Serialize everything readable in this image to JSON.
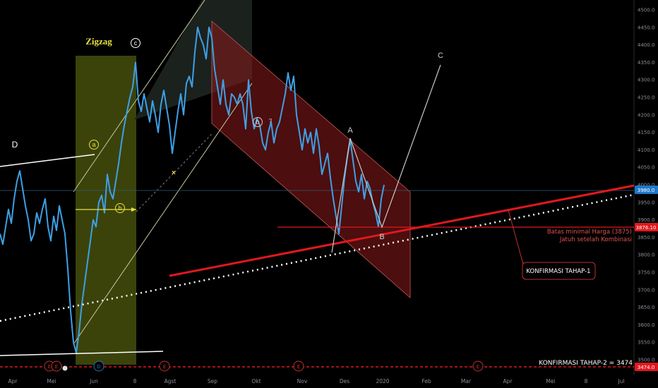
{
  "chart_data": {
    "type": "line",
    "y_axis": {
      "ticks": [
        4500,
        4450,
        4400,
        4350,
        4300,
        4250,
        4200,
        4150,
        4100,
        4050,
        4000,
        3950,
        3900,
        3850,
        3800,
        3750,
        3700,
        3650,
        3600,
        3550,
        3500
      ],
      "tick_labels": [
        "4500.0",
        "4450.0",
        "4400.0",
        "4350.0",
        "4300.0",
        "4250.0",
        "4200.0",
        "4150.0",
        "4100.0",
        "4050.0",
        "4000.0",
        "3950.0",
        "3900.0",
        "3850.0",
        "3800.0",
        "3750.0",
        "3700.0",
        "3650.0",
        "3600.0",
        "3550.0",
        "3500.0"
      ],
      "range": [
        3470,
        4520
      ],
      "side": "right"
    },
    "x_axis": {
      "labels": [
        "Apr",
        "Mei",
        "Jun",
        "8",
        "Agst",
        "Sep",
        "Okt",
        "Nov",
        "Des",
        "2020",
        "Feb",
        "Mar",
        "Apr",
        "Mei",
        "8",
        "Jul"
      ]
    },
    "price_labels": {
      "current": "3980.0",
      "level_b": "3876.10",
      "level_2": "3474.0"
    },
    "colors": {
      "price_line": "#3ea0e6",
      "red_channel": "#8b1a1a",
      "zigzag_box": "#8a9a1f",
      "trend_red": "#e0181e",
      "text_red": "#e05050"
    },
    "price_series": [
      [
        0,
        3860
      ],
      [
        4,
        3830
      ],
      [
        8,
        3880
      ],
      [
        12,
        3930
      ],
      [
        16,
        3890
      ],
      [
        20,
        3960
      ],
      [
        24,
        4010
      ],
      [
        28,
        4040
      ],
      [
        32,
        3990
      ],
      [
        36,
        3940
      ],
      [
        40,
        3900
      ],
      [
        44,
        3840
      ],
      [
        48,
        3860
      ],
      [
        52,
        3920
      ],
      [
        56,
        3890
      ],
      [
        60,
        3930
      ],
      [
        64,
        3960
      ],
      [
        68,
        3880
      ],
      [
        72,
        3840
      ],
      [
        76,
        3910
      ],
      [
        80,
        3870
      ],
      [
        84,
        3940
      ],
      [
        88,
        3900
      ],
      [
        92,
        3860
      ],
      [
        96,
        3760
      ],
      [
        100,
        3640
      ],
      [
        104,
        3550
      ],
      [
        108,
        3520
      ],
      [
        112,
        3580
      ],
      [
        116,
        3660
      ],
      [
        120,
        3720
      ],
      [
        124,
        3780
      ],
      [
        128,
        3840
      ],
      [
        132,
        3900
      ],
      [
        136,
        3880
      ],
      [
        140,
        3950
      ],
      [
        144,
        3970
      ],
      [
        148,
        3920
      ],
      [
        152,
        4030
      ],
      [
        156,
        3980
      ],
      [
        160,
        3960
      ],
      [
        164,
        4010
      ],
      [
        168,
        4060
      ],
      [
        172,
        4120
      ],
      [
        176,
        4170
      ],
      [
        180,
        4210
      ],
      [
        184,
        4250
      ],
      [
        188,
        4280
      ],
      [
        192,
        4350
      ],
      [
        196,
        4240
      ],
      [
        200,
        4210
      ],
      [
        204,
        4260
      ],
      [
        208,
        4220
      ],
      [
        212,
        4180
      ],
      [
        216,
        4240
      ],
      [
        220,
        4200
      ],
      [
        224,
        4150
      ],
      [
        228,
        4230
      ],
      [
        232,
        4270
      ],
      [
        236,
        4220
      ],
      [
        240,
        4170
      ],
      [
        244,
        4090
      ],
      [
        248,
        4150
      ],
      [
        252,
        4210
      ],
      [
        256,
        4260
      ],
      [
        260,
        4200
      ],
      [
        264,
        4290
      ],
      [
        268,
        4310
      ],
      [
        272,
        4280
      ],
      [
        276,
        4380
      ],
      [
        280,
        4450
      ],
      [
        284,
        4420
      ],
      [
        288,
        4400
      ],
      [
        292,
        4360
      ],
      [
        296,
        4450
      ],
      [
        300,
        4420
      ],
      [
        304,
        4330
      ],
      [
        308,
        4280
      ],
      [
        312,
        4230
      ],
      [
        316,
        4300
      ],
      [
        320,
        4230
      ],
      [
        324,
        4200
      ],
      [
        328,
        4260
      ],
      [
        332,
        4250
      ],
      [
        336,
        4230
      ],
      [
        340,
        4260
      ],
      [
        344,
        4230
      ],
      [
        348,
        4160
      ],
      [
        352,
        4300
      ],
      [
        356,
        4210
      ],
      [
        360,
        4160
      ],
      [
        364,
        4190
      ],
      [
        368,
        4170
      ],
      [
        372,
        4120
      ],
      [
        376,
        4100
      ],
      [
        380,
        4150
      ],
      [
        384,
        4180
      ],
      [
        388,
        4120
      ],
      [
        392,
        4160
      ],
      [
        396,
        4180
      ],
      [
        400,
        4220
      ],
      [
        404,
        4260
      ],
      [
        408,
        4320
      ],
      [
        412,
        4270
      ],
      [
        416,
        4310
      ],
      [
        420,
        4200
      ],
      [
        424,
        4150
      ],
      [
        428,
        4100
      ],
      [
        432,
        4160
      ],
      [
        436,
        4120
      ],
      [
        440,
        4150
      ],
      [
        444,
        4090
      ],
      [
        448,
        4160
      ],
      [
        452,
        4110
      ],
      [
        456,
        4030
      ],
      [
        460,
        4060
      ],
      [
        464,
        4090
      ],
      [
        468,
        4020
      ],
      [
        472,
        3960
      ],
      [
        476,
        3910
      ],
      [
        480,
        3860
      ],
      [
        484,
        3940
      ],
      [
        488,
        4020
      ],
      [
        492,
        4080
      ],
      [
        496,
        4130
      ],
      [
        500,
        4070
      ],
      [
        504,
        4010
      ],
      [
        508,
        3980
      ],
      [
        512,
        4030
      ],
      [
        516,
        3960
      ],
      [
        520,
        4010
      ],
      [
        524,
        3990
      ],
      [
        528,
        3950
      ],
      [
        532,
        3920
      ],
      [
        536,
        3880
      ],
      [
        540,
        3960
      ],
      [
        544,
        4000
      ]
    ],
    "annotations": {
      "zigzag": "Zigzag",
      "wave_c_circle": "c",
      "wave_a_circle": "a",
      "wave_b_circle": "b",
      "wave_b_circle2": "b",
      "wave_d": "D",
      "wave_A": "A",
      "wave_B": "B",
      "wave_C": "C",
      "question": "?",
      "min_price_line1": "Batas minimal Harga (3875)",
      "min_price_line2": "Jatuh setelah Kombinasi",
      "konfirmasi1": "KONFIRMASI TAHAP-1",
      "konfirmasi2": "KONFIRMASI TAHAP-2  = 3474",
      "event_markers": [
        "E",
        "E",
        "D",
        "E",
        "E",
        "E"
      ]
    }
  }
}
